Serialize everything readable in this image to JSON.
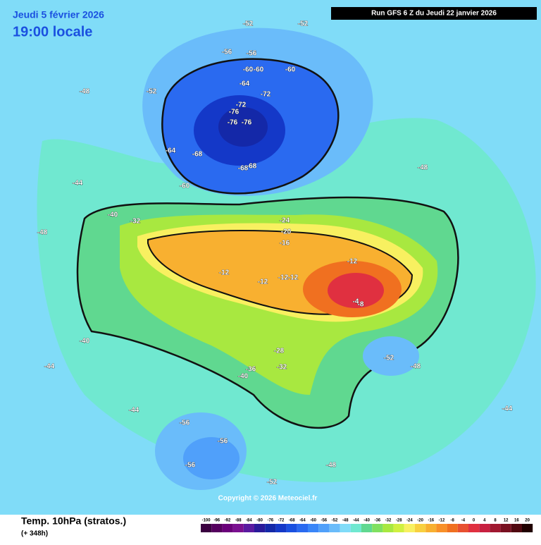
{
  "header": {
    "date": "Jeudi 5 février 2026",
    "time": "19:00 locale",
    "run": "Run GFS 6 Z du Jeudi 22 janvier 2026"
  },
  "footer": {
    "title": "Temp. 10hPa (stratos.)",
    "lead": "(+ 348h)",
    "copyright": "Copyright © 2026 Meteociel.fr"
  },
  "legend": {
    "ticks": [
      -100,
      -96,
      -92,
      -88,
      -84,
      -80,
      -76,
      -72,
      -68,
      -64,
      -60,
      -56,
      -52,
      -48,
      -44,
      -40,
      -36,
      -32,
      -28,
      -24,
      -20,
      -16,
      -12,
      -8,
      -4,
      0,
      4,
      8,
      12,
      16,
      20
    ],
    "colors": [
      "#3a0040",
      "#55005e",
      "#6a007a",
      "#7a1090",
      "#5a1aa0",
      "#2a1a9a",
      "#1428a8",
      "#1438c8",
      "#1a50e0",
      "#2a6af0",
      "#3a86f8",
      "#50a0fa",
      "#6abcfa",
      "#80dcf8",
      "#70e8d0",
      "#60d890",
      "#80e060",
      "#a8e840",
      "#d0f040",
      "#f8f060",
      "#f8d040",
      "#f8b030",
      "#f89028",
      "#f07020",
      "#e85030",
      "#e03040",
      "#c82040",
      "#a01830",
      "#781020",
      "#500810",
      "#200000"
    ]
  },
  "contour_labels": [
    -60,
    -60,
    -60,
    -64,
    -72,
    -72,
    -76,
    -76,
    -76,
    -68,
    -68,
    -68,
    -64,
    -60,
    -56,
    -56,
    -52,
    -52,
    -52,
    -24,
    -20,
    -16,
    -12,
    -12,
    -12,
    -12,
    -12,
    -4,
    -8,
    -28,
    -32,
    -36,
    -40,
    -40,
    -40,
    -32,
    -52,
    -56,
    -56,
    -56,
    -52,
    -48,
    -48,
    -48,
    -44,
    -44,
    -44,
    -48,
    -48,
    -44
  ]
}
